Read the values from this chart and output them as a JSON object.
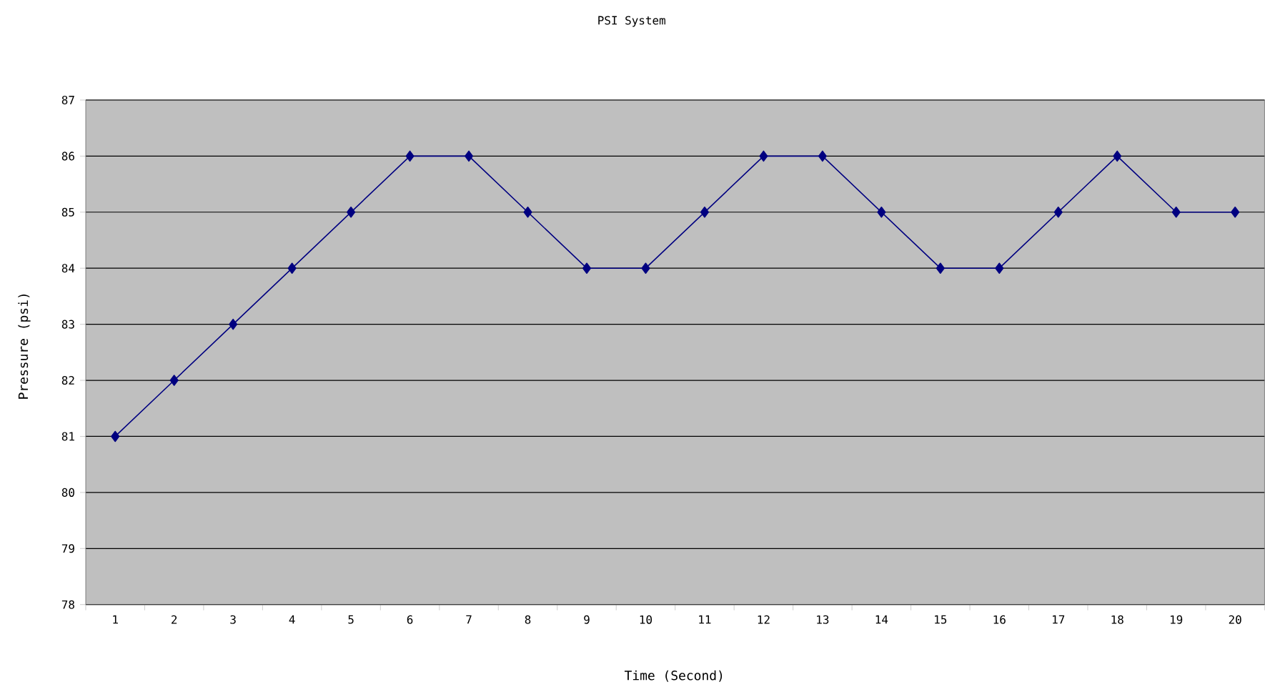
{
  "chart_data": {
    "type": "line",
    "title": "PSI System",
    "xlabel": "Time (Second)",
    "ylabel": "Pressure (psi)",
    "categories": [
      "1",
      "2",
      "3",
      "4",
      "5",
      "6",
      "7",
      "8",
      "9",
      "10",
      "11",
      "12",
      "13",
      "14",
      "15",
      "16",
      "17",
      "18",
      "19",
      "20"
    ],
    "series": [
      {
        "color": "#000080",
        "values": [
          81,
          82,
          83,
          84,
          85,
          86,
          86,
          85,
          84,
          84,
          85,
          86,
          86,
          85,
          84,
          84,
          85,
          86,
          85,
          85
        ]
      }
    ],
    "ylim": [
      78,
      87
    ],
    "yticks": [
      78,
      79,
      80,
      81,
      82,
      83,
      84,
      85,
      86,
      87
    ],
    "grid": "y",
    "marker": "diamond",
    "line_style": "solid"
  }
}
